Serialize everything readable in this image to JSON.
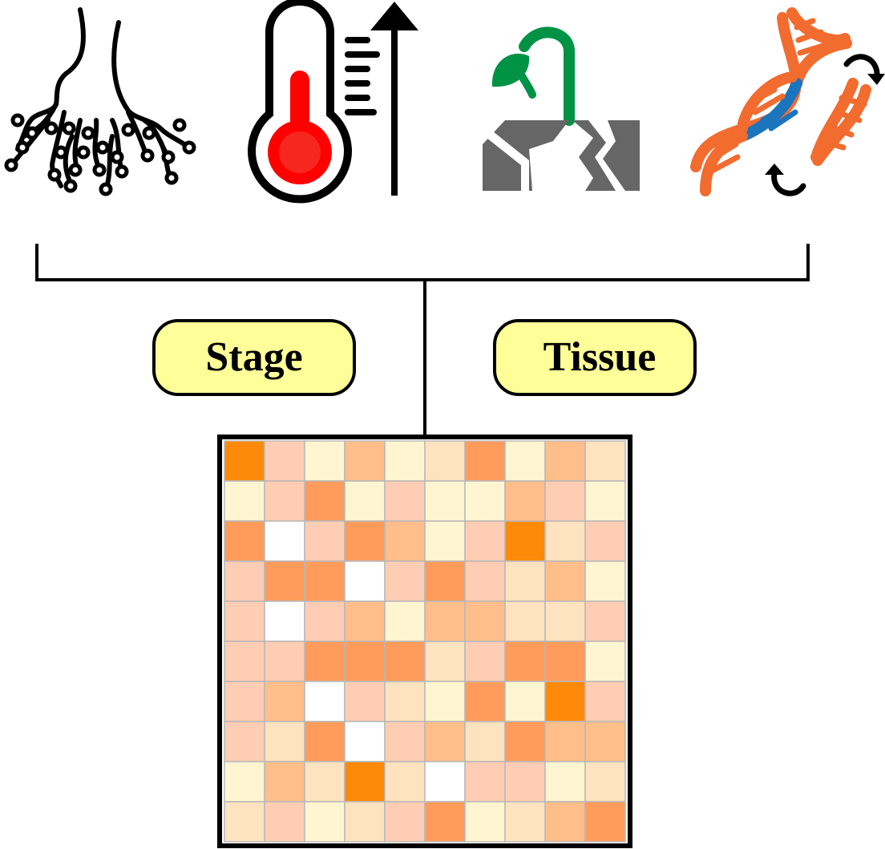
{
  "labels": {
    "stage": "Stage",
    "tissue": "Tissue"
  },
  "icons": [
    {
      "name": "root-nodules-icon"
    },
    {
      "name": "thermometer-rising-icon"
    },
    {
      "name": "seedling-soil-icon"
    },
    {
      "name": "dna-rearrangement-icon"
    }
  ],
  "colors": {
    "label_fill": "#ffff99",
    "thermo_red": "#ff0000",
    "seedling_green": "#009245",
    "soil_gray": "#666666",
    "dna_orange": "#f26b2f",
    "dna_blue": "#1b75bc"
  },
  "heatmap": {
    "rows": 10,
    "cols": 10,
    "levels": [
      [
        6,
        3,
        1,
        4,
        1,
        2,
        5,
        1,
        4,
        2
      ],
      [
        1,
        3,
        5,
        1,
        3,
        1,
        1,
        4,
        3,
        1
      ],
      [
        5,
        0,
        3,
        5,
        4,
        1,
        3,
        6,
        2,
        3
      ],
      [
        3,
        5,
        5,
        0,
        3,
        5,
        3,
        2,
        4,
        1
      ],
      [
        3,
        0,
        3,
        4,
        1,
        4,
        4,
        2,
        2,
        3
      ],
      [
        3,
        3,
        5,
        5,
        5,
        2,
        3,
        5,
        5,
        1
      ],
      [
        3,
        4,
        0,
        3,
        2,
        1,
        5,
        1,
        6,
        3
      ],
      [
        3,
        2,
        5,
        0,
        3,
        4,
        2,
        5,
        4,
        4
      ],
      [
        1,
        4,
        2,
        6,
        2,
        0,
        3,
        3,
        1,
        2
      ],
      [
        2,
        3,
        1,
        2,
        3,
        5,
        1,
        2,
        4,
        5
      ]
    ],
    "palette": [
      "#ffffff",
      "#fff6d1",
      "#ffe2bf",
      "#ffcdb3",
      "#ffbe8a",
      "#ff9c5c",
      "#ff8a0a",
      "#f05a28"
    ]
  }
}
